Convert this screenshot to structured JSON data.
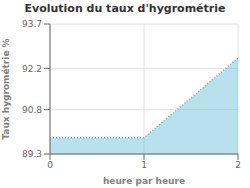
{
  "chart_data": {
    "type": "area",
    "title": "Evolution du taux d'hygrométrie",
    "xlabel": "heure par heure",
    "ylabel": "Taux hygrométrie %",
    "x": [
      0,
      1,
      2
    ],
    "values": [
      89.85,
      89.85,
      92.55
    ],
    "xlim": [
      0,
      2
    ],
    "xticks": [
      0,
      1,
      2
    ],
    "ylim": [
      89.3,
      93.7
    ],
    "yticks": [
      89.3,
      90.8,
      92.2,
      93.7
    ],
    "color": "#62bcd6",
    "line_style": "dotted",
    "grid": true
  }
}
